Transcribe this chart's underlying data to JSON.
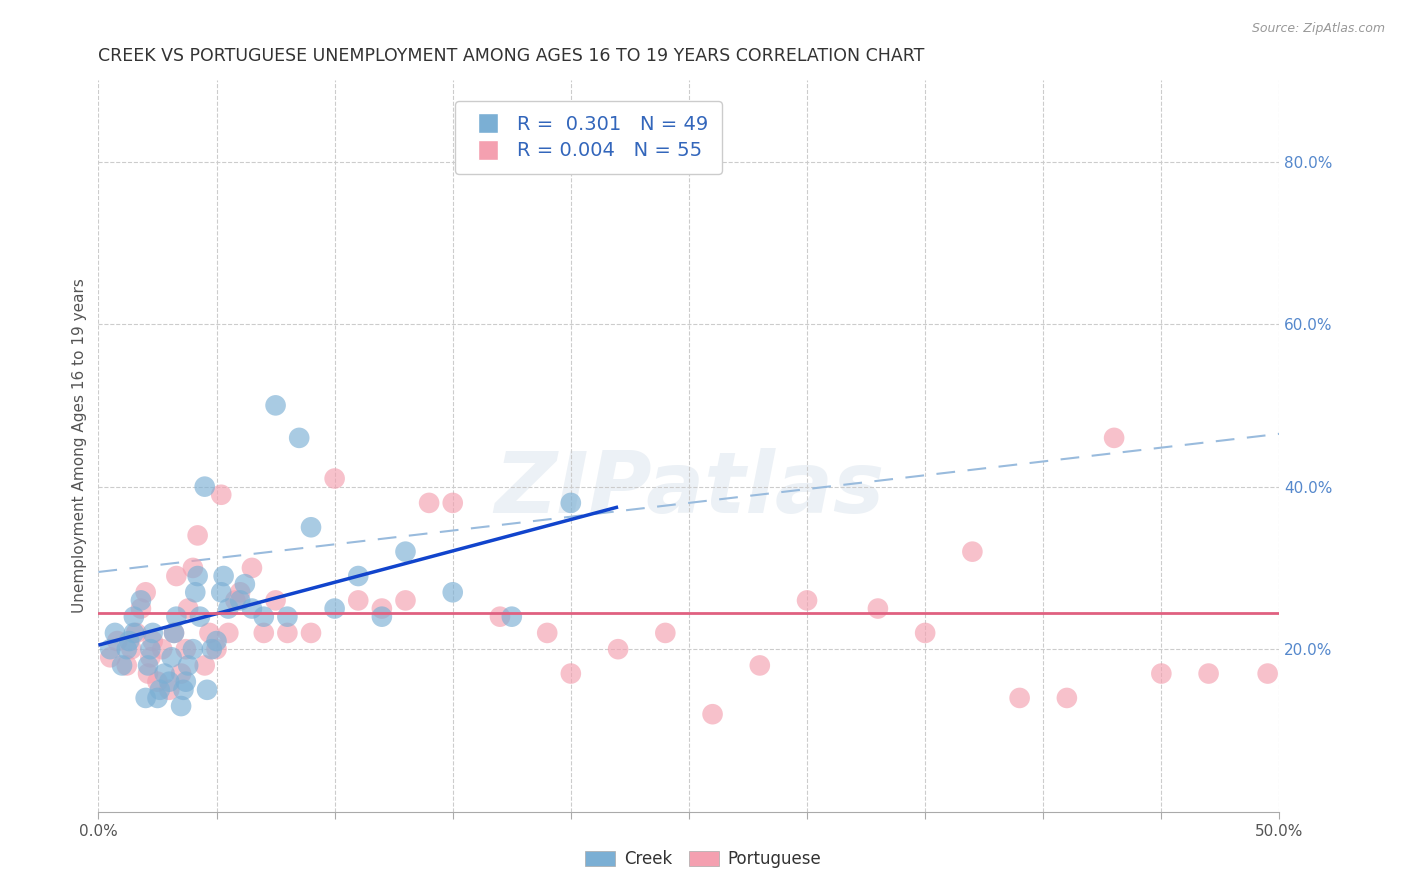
{
  "title": "CREEK VS PORTUGUESE UNEMPLOYMENT AMONG AGES 16 TO 19 YEARS CORRELATION CHART",
  "source": "Source: ZipAtlas.com",
  "ylabel": "Unemployment Among Ages 16 to 19 years",
  "xlim": [
    0.0,
    0.5
  ],
  "ylim": [
    0.0,
    0.9
  ],
  "right_yticks": [
    0.2,
    0.4,
    0.6,
    0.8
  ],
  "right_yticklabels": [
    "20.0%",
    "40.0%",
    "60.0%",
    "80.0%"
  ],
  "xticks": [
    0.0,
    0.05,
    0.1,
    0.15,
    0.2,
    0.25,
    0.3,
    0.35,
    0.4,
    0.45,
    0.5
  ],
  "xlabels_show": {
    "0.0": "0.0%",
    "0.5": "50.0%"
  },
  "grid_color": "#cccccc",
  "background_color": "#ffffff",
  "creek_color": "#7bafd4",
  "portuguese_color": "#f4a0b0",
  "creek_R": "0.301",
  "creek_N": "49",
  "portuguese_R": "0.004",
  "portuguese_N": "55",
  "watermark": "ZIPatlas",
  "creek_scatter_x": [
    0.005,
    0.007,
    0.01,
    0.012,
    0.013,
    0.015,
    0.015,
    0.018,
    0.02,
    0.021,
    0.022,
    0.023,
    0.025,
    0.026,
    0.028,
    0.03,
    0.031,
    0.032,
    0.033,
    0.035,
    0.036,
    0.037,
    0.038,
    0.04,
    0.041,
    0.042,
    0.043,
    0.045,
    0.046,
    0.048,
    0.05,
    0.052,
    0.053,
    0.055,
    0.06,
    0.062,
    0.065,
    0.07,
    0.075,
    0.08,
    0.085,
    0.09,
    0.1,
    0.11,
    0.12,
    0.13,
    0.15,
    0.175,
    0.2
  ],
  "creek_scatter_y": [
    0.2,
    0.22,
    0.18,
    0.2,
    0.21,
    0.22,
    0.24,
    0.26,
    0.14,
    0.18,
    0.2,
    0.22,
    0.14,
    0.15,
    0.17,
    0.16,
    0.19,
    0.22,
    0.24,
    0.13,
    0.15,
    0.16,
    0.18,
    0.2,
    0.27,
    0.29,
    0.24,
    0.4,
    0.15,
    0.2,
    0.21,
    0.27,
    0.29,
    0.25,
    0.26,
    0.28,
    0.25,
    0.24,
    0.5,
    0.24,
    0.46,
    0.35,
    0.25,
    0.29,
    0.24,
    0.32,
    0.27,
    0.24,
    0.38
  ],
  "portuguese_scatter_x": [
    0.005,
    0.008,
    0.012,
    0.014,
    0.016,
    0.018,
    0.02,
    0.021,
    0.022,
    0.023,
    0.025,
    0.027,
    0.03,
    0.032,
    0.033,
    0.035,
    0.037,
    0.038,
    0.04,
    0.042,
    0.045,
    0.047,
    0.05,
    0.052,
    0.055,
    0.058,
    0.06,
    0.065,
    0.07,
    0.075,
    0.08,
    0.09,
    0.1,
    0.11,
    0.12,
    0.13,
    0.14,
    0.15,
    0.17,
    0.19,
    0.2,
    0.22,
    0.24,
    0.26,
    0.28,
    0.3,
    0.33,
    0.35,
    0.37,
    0.39,
    0.41,
    0.43,
    0.45,
    0.47,
    0.495
  ],
  "portuguese_scatter_y": [
    0.19,
    0.21,
    0.18,
    0.2,
    0.22,
    0.25,
    0.27,
    0.17,
    0.19,
    0.21,
    0.16,
    0.2,
    0.15,
    0.22,
    0.29,
    0.17,
    0.2,
    0.25,
    0.3,
    0.34,
    0.18,
    0.22,
    0.2,
    0.39,
    0.22,
    0.26,
    0.27,
    0.3,
    0.22,
    0.26,
    0.22,
    0.22,
    0.41,
    0.26,
    0.25,
    0.26,
    0.38,
    0.38,
    0.24,
    0.22,
    0.17,
    0.2,
    0.22,
    0.12,
    0.18,
    0.26,
    0.25,
    0.22,
    0.32,
    0.14,
    0.14,
    0.46,
    0.17,
    0.17,
    0.17
  ],
  "creek_trend_x": [
    0.0,
    0.22
  ],
  "creek_trend_y": [
    0.205,
    0.375
  ],
  "portuguese_trend_y": 0.245,
  "dashed_trend_x": [
    0.0,
    0.5
  ],
  "dashed_trend_y": [
    0.295,
    0.465
  ]
}
